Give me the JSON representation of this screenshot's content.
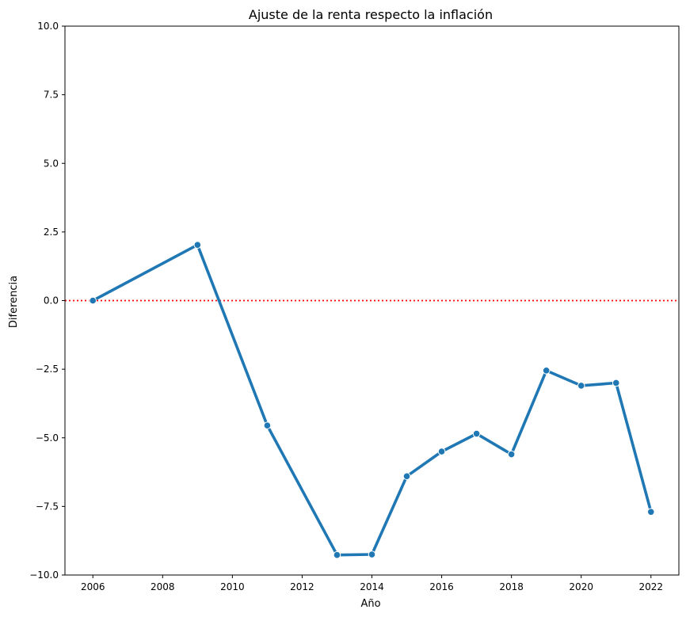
{
  "chart_data": {
    "type": "line",
    "title": "Ajuste de la renta respecto la inflación",
    "xlabel": "Año",
    "ylabel": "Diferencia",
    "xlim": [
      2005.2,
      2022.8
    ],
    "ylim": [
      -10,
      10
    ],
    "x_ticks": [
      2006,
      2008,
      2010,
      2012,
      2014,
      2016,
      2018,
      2020,
      2022
    ],
    "y_ticks": [
      -10.0,
      -7.5,
      -5.0,
      -2.5,
      0.0,
      2.5,
      5.0,
      7.5,
      10.0
    ],
    "x_tick_labels": [
      "2006",
      "2008",
      "2010",
      "2012",
      "2014",
      "2016",
      "2018",
      "2020",
      "2022"
    ],
    "y_tick_labels": [
      "−10.0",
      "−7.5",
      "−5.0",
      "−2.5",
      "0.0",
      "2.5",
      "5.0",
      "7.5",
      "10.0"
    ],
    "grid": false,
    "series": [
      {
        "color": "#1f77b4",
        "x": [
          2006,
          2009,
          2011,
          2013,
          2014,
          2015,
          2016,
          2017,
          2018,
          2019,
          2020,
          2021,
          2022
        ],
        "y": [
          0.0,
          2.03,
          -4.55,
          -9.27,
          -9.25,
          -6.4,
          -5.5,
          -4.85,
          -5.6,
          -2.55,
          -3.1,
          -3.0,
          -7.7
        ]
      }
    ],
    "reference_line": {
      "y": 0,
      "color": "#ff0000",
      "style": "dotted"
    }
  }
}
